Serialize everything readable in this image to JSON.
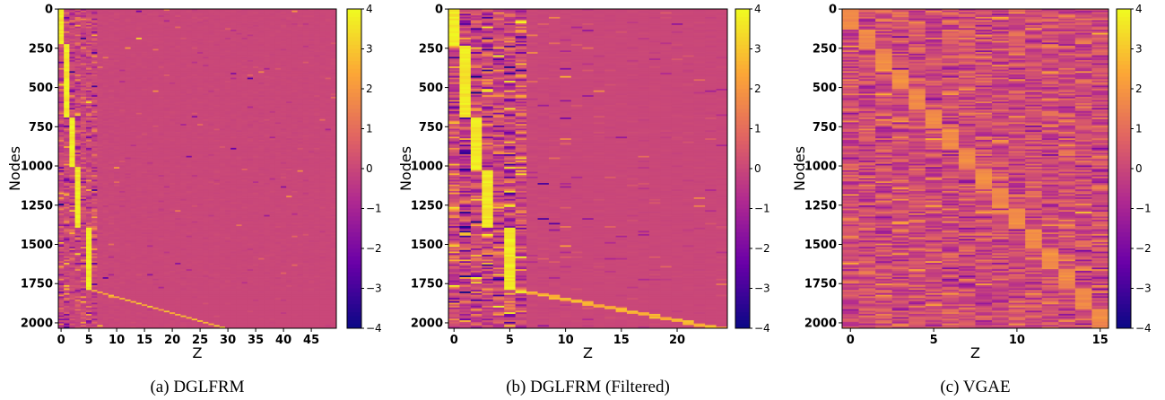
{
  "figure": {
    "palette": [
      "#0d0887",
      "#6a00a8",
      "#b12a90",
      "#e16462",
      "#fca636",
      "#f0f921"
    ]
  },
  "chart_data": [
    {
      "type": "heatmap",
      "caption": "(a) DGLFRM",
      "xlabel": "Z",
      "ylabel": "Nodes",
      "n_rows": 2035,
      "n_cols": 50,
      "xlim": [
        -0.5,
        49.5
      ],
      "ylim": [
        -0.5,
        2034.5
      ],
      "x_ticks": [
        0,
        5,
        10,
        15,
        20,
        25,
        30,
        35,
        40,
        45
      ],
      "y_ticks": [
        0,
        250,
        500,
        750,
        1000,
        1250,
        1500,
        1750,
        2000
      ],
      "colorbar": {
        "range": [
          -4,
          4
        ],
        "ticks": [
          4,
          3,
          2,
          1,
          0,
          -1,
          -2,
          -3,
          -4
        ],
        "colormap": "plasma"
      },
      "pattern": {
        "dense_columns": [
          0,
          1,
          2,
          3,
          4,
          5,
          6
        ],
        "bright_blocks": [
          {
            "col": 0,
            "rows": [
              0,
              220
            ]
          },
          {
            "col": 1,
            "rows": [
              220,
              690
            ]
          },
          {
            "col": 2,
            "rows": [
              690,
              1000
            ]
          },
          {
            "col": 3,
            "rows": [
              1000,
              1390
            ]
          },
          {
            "col": 5,
            "rows": [
              1390,
              1790
            ]
          }
        ],
        "diagonal_tail": {
          "cols": [
            6,
            30
          ],
          "rows": [
            1790,
            2035
          ]
        }
      }
    },
    {
      "type": "heatmap",
      "caption": "(b) DGLFRM (Filtered)",
      "xlabel": "Z",
      "ylabel": "Nodes",
      "n_rows": 2035,
      "n_cols": 25,
      "xlim": [
        -0.5,
        24.5
      ],
      "ylim": [
        -0.5,
        2034.5
      ],
      "x_ticks": [
        0,
        5,
        10,
        15,
        20
      ],
      "y_ticks": [
        0,
        250,
        500,
        750,
        1000,
        1250,
        1500,
        1750,
        2000
      ],
      "colorbar": {
        "range": [
          -4,
          4
        ],
        "ticks": [
          4,
          3,
          2,
          1,
          0,
          -1,
          -2,
          -3,
          -4
        ],
        "colormap": "plasma"
      },
      "pattern": {
        "dense_columns": [
          0,
          1,
          2,
          3,
          4,
          5,
          6
        ],
        "bright_blocks": [
          {
            "col": 0,
            "rows": [
              0,
              230
            ]
          },
          {
            "col": 1,
            "rows": [
              230,
              690
            ]
          },
          {
            "col": 2,
            "rows": [
              690,
              1020
            ]
          },
          {
            "col": 3,
            "rows": [
              1020,
              1390
            ]
          },
          {
            "col": 5,
            "rows": [
              1390,
              1790
            ]
          }
        ],
        "diagonal_tail": {
          "cols": [
            6,
            24
          ],
          "rows": [
            1790,
            2035
          ]
        }
      }
    },
    {
      "type": "heatmap",
      "caption": "(c) VGAE",
      "xlabel": "Z",
      "ylabel": "Nodes",
      "n_rows": 2035,
      "n_cols": 16,
      "xlim": [
        -0.5,
        15.5
      ],
      "ylim": [
        -0.5,
        2034.5
      ],
      "x_ticks": [
        0,
        5,
        10,
        15
      ],
      "y_ticks": [
        0,
        250,
        500,
        750,
        1000,
        1250,
        1500,
        1750,
        2000
      ],
      "colorbar": {
        "range": [
          -4,
          4
        ],
        "ticks": [
          4,
          3,
          2,
          1,
          0,
          -1,
          -2,
          -3,
          -4
        ],
        "colormap": "plasma"
      },
      "pattern": {
        "noise_level": "moderate",
        "diagonal_blocks": {
          "count": 16,
          "rows_per_block": 127
        }
      }
    }
  ]
}
